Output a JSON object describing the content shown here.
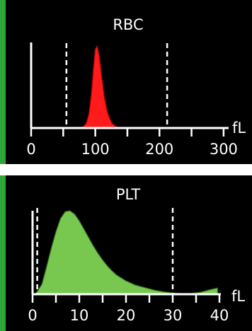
{
  "chart_data": [
    {
      "type": "area",
      "title": "RBC",
      "unit_label": "fL",
      "x_ticks": [
        0,
        100,
        200,
        300
      ],
      "xlim": [
        0,
        320
      ],
      "ylim": [
        0,
        1
      ],
      "markers": [
        55,
        212
      ],
      "fill_color": "#ff1b1b",
      "outline_color": "#b00000",
      "series": [
        {
          "x": [
            78,
            82,
            86,
            90,
            94,
            97,
            100,
            103,
            106,
            110,
            114,
            118,
            122,
            126,
            130,
            134,
            138,
            142
          ],
          "y": [
            0,
            0.02,
            0.06,
            0.17,
            0.42,
            0.72,
            0.96,
            1.0,
            0.88,
            0.62,
            0.38,
            0.22,
            0.12,
            0.06,
            0.03,
            0.01,
            0.004,
            0
          ]
        }
      ]
    },
    {
      "type": "area",
      "title": "PLT",
      "unit_label": "fL",
      "x_ticks": [
        0,
        10,
        20,
        30,
        40
      ],
      "xlim": [
        0,
        40
      ],
      "ylim": [
        0,
        1
      ],
      "markers": [
        1,
        30
      ],
      "fill_color": "#78c850",
      "outline_color": "#2f6b1c",
      "series": [
        {
          "x": [
            0.6,
            2,
            3,
            4,
            5,
            6,
            7,
            8,
            9,
            10,
            11,
            12,
            13,
            14,
            15,
            16,
            17,
            18,
            20,
            22,
            24,
            26,
            28,
            30,
            32,
            34,
            36,
            38,
            39.6
          ],
          "y": [
            0,
            0.12,
            0.33,
            0.55,
            0.75,
            0.91,
            0.99,
            1.0,
            0.96,
            0.88,
            0.78,
            0.68,
            0.58,
            0.49,
            0.41,
            0.34,
            0.28,
            0.23,
            0.16,
            0.11,
            0.08,
            0.05,
            0.03,
            0.015,
            0.008,
            0.01,
            0.025,
            0.055,
            0.075
          ]
        }
      ]
    }
  ]
}
